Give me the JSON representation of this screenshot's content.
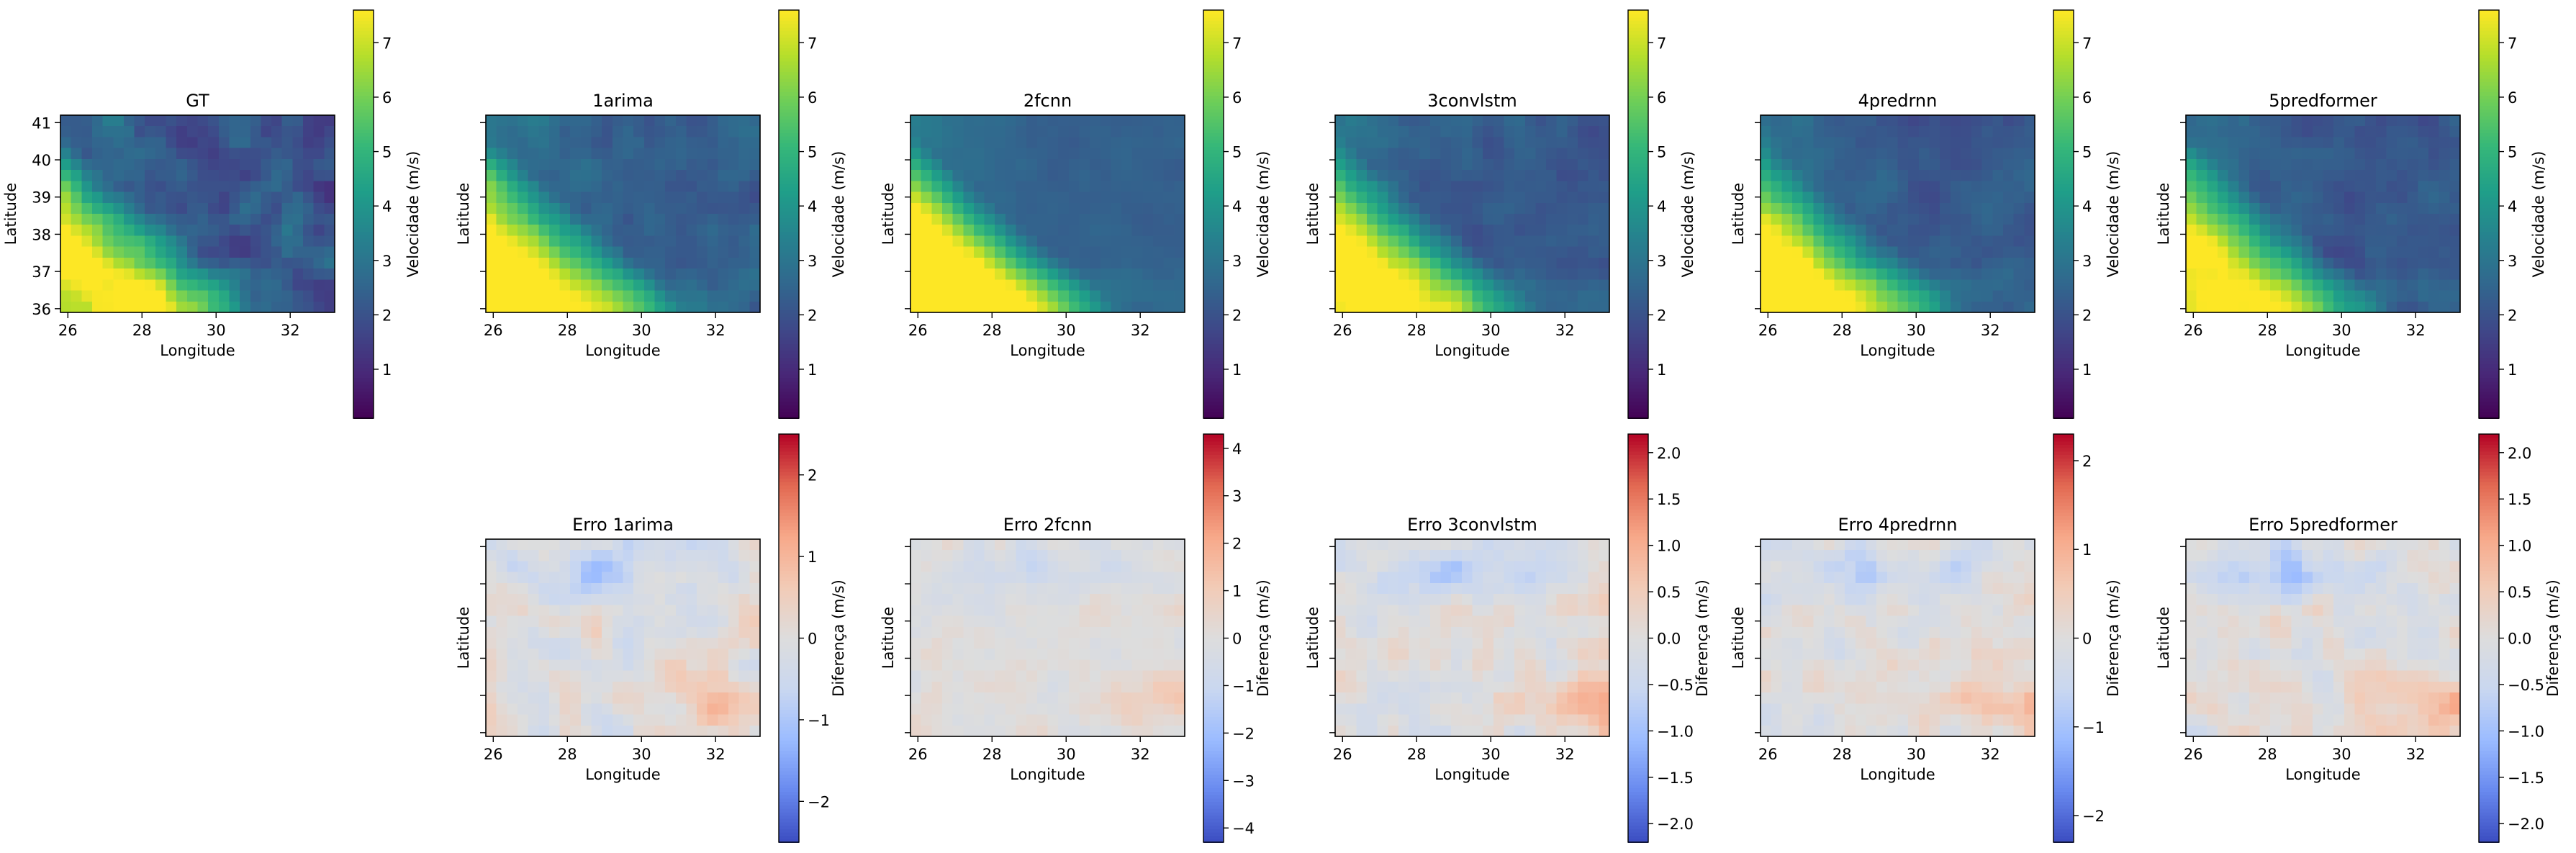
{
  "figure": {
    "xlabel": "Longitude",
    "ylabel": "Latitude",
    "velocity_colorbar_label": "Velocidade (m/s)",
    "error_colorbar_label": "Diferença (m/s)",
    "velocity_colormap": "viridis",
    "error_colormap": "coolwarm",
    "colors": {
      "viridis": [
        "#440154",
        "#482878",
        "#3e4989",
        "#31688e",
        "#26828e",
        "#1f9e89",
        "#35b779",
        "#6ece58",
        "#b5de2b",
        "#fde725"
      ],
      "coolwarm": [
        "#3b4cc0",
        "#6788ee",
        "#9abbff",
        "#c9d7f0",
        "#dddddd",
        "#f2cbb7",
        "#f7a889",
        "#e26952",
        "#b40426"
      ]
    }
  },
  "chart_data": [
    {
      "type": "heatmap",
      "title": "GT",
      "row": 0,
      "col": 0,
      "colormap": "viridis",
      "xlim": [
        25.8,
        33.2
      ],
      "ylim": [
        35.9,
        41.2
      ],
      "xticks": [
        26,
        28,
        30,
        32
      ],
      "yticks": [
        36,
        37,
        38,
        39,
        40,
        41
      ],
      "show_ytick_labels": true,
      "value_range": [
        0.1,
        7.6
      ],
      "colorbar_ticks": [
        1,
        2,
        3,
        4,
        5,
        6,
        7
      ],
      "colorbar_tick_labels": [
        "1",
        "2",
        "3",
        "4",
        "5",
        "6",
        "7"
      ],
      "colorbar_label": "Velocidade (m/s)",
      "field": {
        "scale": 1.0,
        "base": 0,
        "noise": 0.9,
        "seed": 11
      }
    },
    {
      "type": "heatmap",
      "title": "1arima",
      "row": 0,
      "col": 1,
      "colormap": "viridis",
      "xlim": [
        25.8,
        33.2
      ],
      "ylim": [
        35.9,
        41.2
      ],
      "xticks": [
        26,
        28,
        30,
        32
      ],
      "yticks": [
        36,
        37,
        38,
        39,
        40,
        41
      ],
      "show_ytick_labels": false,
      "value_range": [
        0.1,
        7.6
      ],
      "colorbar_ticks": [
        1,
        2,
        3,
        4,
        5,
        6,
        7
      ],
      "colorbar_tick_labels": [
        "1",
        "2",
        "3",
        "4",
        "5",
        "6",
        "7"
      ],
      "colorbar_label": "Velocidade (m/s)",
      "field": {
        "scale": 1.0,
        "base": 0.3,
        "noise": 0.5,
        "seed": 23
      }
    },
    {
      "type": "heatmap",
      "title": "2fcnn",
      "row": 0,
      "col": 2,
      "colormap": "viridis",
      "xlim": [
        25.8,
        33.2
      ],
      "ylim": [
        35.9,
        41.2
      ],
      "xticks": [
        26,
        28,
        30,
        32
      ],
      "yticks": [
        36,
        37,
        38,
        39,
        40,
        41
      ],
      "show_ytick_labels": false,
      "value_range": [
        0.1,
        7.6
      ],
      "colorbar_ticks": [
        1,
        2,
        3,
        4,
        5,
        6,
        7
      ],
      "colorbar_tick_labels": [
        "1",
        "2",
        "3",
        "4",
        "5",
        "6",
        "7"
      ],
      "colorbar_label": "Velocidade (m/s)",
      "field": {
        "scale": 1.2,
        "base": 0.3,
        "noise": 0.2,
        "seed": 37
      }
    },
    {
      "type": "heatmap",
      "title": "3convlstm",
      "row": 0,
      "col": 3,
      "colormap": "viridis",
      "xlim": [
        25.8,
        33.2
      ],
      "ylim": [
        35.9,
        41.2
      ],
      "xticks": [
        26,
        28,
        30,
        32
      ],
      "yticks": [
        36,
        37,
        38,
        39,
        40,
        41
      ],
      "show_ytick_labels": false,
      "value_range": [
        0.1,
        7.6
      ],
      "colorbar_ticks": [
        1,
        2,
        3,
        4,
        5,
        6,
        7
      ],
      "colorbar_tick_labels": [
        "1",
        "2",
        "3",
        "4",
        "5",
        "6",
        "7"
      ],
      "colorbar_label": "Velocidade (m/s)",
      "field": {
        "scale": 1.0,
        "base": 0.1,
        "noise": 0.45,
        "seed": 41
      }
    },
    {
      "type": "heatmap",
      "title": "4predrnn",
      "row": 0,
      "col": 4,
      "colormap": "viridis",
      "xlim": [
        25.8,
        33.2
      ],
      "ylim": [
        35.9,
        41.2
      ],
      "xticks": [
        26,
        28,
        30,
        32
      ],
      "yticks": [
        36,
        37,
        38,
        39,
        40,
        41
      ],
      "show_ytick_labels": false,
      "value_range": [
        0.1,
        7.6
      ],
      "colorbar_ticks": [
        1,
        2,
        3,
        4,
        5,
        6,
        7
      ],
      "colorbar_tick_labels": [
        "1",
        "2",
        "3",
        "4",
        "5",
        "6",
        "7"
      ],
      "colorbar_label": "Velocidade (m/s)",
      "field": {
        "scale": 1.0,
        "base": 0.1,
        "noise": 0.45,
        "seed": 53
      }
    },
    {
      "type": "heatmap",
      "title": "5predformer",
      "row": 0,
      "col": 5,
      "colormap": "viridis",
      "xlim": [
        25.8,
        33.2
      ],
      "ylim": [
        35.9,
        41.2
      ],
      "xticks": [
        26,
        28,
        30,
        32
      ],
      "yticks": [
        36,
        37,
        38,
        39,
        40,
        41
      ],
      "show_ytick_labels": false,
      "value_range": [
        0.1,
        7.6
      ],
      "colorbar_ticks": [
        1,
        2,
        3,
        4,
        5,
        6,
        7
      ],
      "colorbar_tick_labels": [
        "1",
        "2",
        "3",
        "4",
        "5",
        "6",
        "7"
      ],
      "colorbar_label": "Velocidade (m/s)",
      "field": {
        "scale": 0.95,
        "base": 0.1,
        "noise": 0.45,
        "seed": 67
      }
    },
    {
      "type": "heatmap",
      "title": "Erro 1arima",
      "row": 1,
      "col": 1,
      "colormap": "coolwarm",
      "xlim": [
        25.8,
        33.2
      ],
      "ylim": [
        35.9,
        41.2
      ],
      "xticks": [
        26,
        28,
        30,
        32
      ],
      "yticks": [
        36,
        37,
        38,
        39,
        40,
        41
      ],
      "show_ytick_labels": false,
      "value_range": [
        -2.5,
        2.5
      ],
      "colorbar_ticks": [
        -2,
        -1,
        0,
        1,
        2
      ],
      "colorbar_tick_labels": [
        "−2",
        "−1",
        "0",
        "1",
        "2"
      ],
      "colorbar_label": "Diferença (m/s)",
      "field": {
        "kind": "error",
        "amp": 1.1,
        "seed": 101
      }
    },
    {
      "type": "heatmap",
      "title": "Erro 2fcnn",
      "row": 1,
      "col": 2,
      "colormap": "coolwarm",
      "xlim": [
        25.8,
        33.2
      ],
      "ylim": [
        35.9,
        41.2
      ],
      "xticks": [
        26,
        28,
        30,
        32
      ],
      "yticks": [
        36,
        37,
        38,
        39,
        40,
        41
      ],
      "show_ytick_labels": false,
      "value_range": [
        -4.3,
        4.3
      ],
      "colorbar_ticks": [
        -4,
        -3,
        -2,
        -1,
        0,
        1,
        2,
        3,
        4
      ],
      "colorbar_tick_labels": [
        "−4",
        "−3",
        "−2",
        "−1",
        "0",
        "1",
        "2",
        "3",
        "4"
      ],
      "colorbar_label": "Diferença (m/s)",
      "field": {
        "kind": "error",
        "amp": 1.1,
        "seed": 113
      }
    },
    {
      "type": "heatmap",
      "title": "Erro 3convlstm",
      "row": 1,
      "col": 3,
      "colormap": "coolwarm",
      "xlim": [
        25.8,
        33.2
      ],
      "ylim": [
        35.9,
        41.2
      ],
      "xticks": [
        26,
        28,
        30,
        32
      ],
      "yticks": [
        36,
        37,
        38,
        39,
        40,
        41
      ],
      "show_ytick_labels": false,
      "value_range": [
        -2.2,
        2.2
      ],
      "colorbar_ticks": [
        -2.0,
        -1.5,
        -1.0,
        -0.5,
        0.0,
        0.5,
        1.0,
        1.5,
        2.0
      ],
      "colorbar_tick_labels": [
        "−2.0",
        "−1.5",
        "−1.0",
        "−0.5",
        "0.0",
        "0.5",
        "1.0",
        "1.5",
        "2.0"
      ],
      "colorbar_label": "Diferença (m/s)",
      "field": {
        "kind": "error",
        "amp": 0.9,
        "seed": 127
      }
    },
    {
      "type": "heatmap",
      "title": "Erro 4predrnn",
      "row": 1,
      "col": 4,
      "colormap": "coolwarm",
      "xlim": [
        25.8,
        33.2
      ],
      "ylim": [
        35.9,
        41.2
      ],
      "xticks": [
        26,
        28,
        30,
        32
      ],
      "yticks": [
        36,
        37,
        38,
        39,
        40,
        41
      ],
      "show_ytick_labels": false,
      "value_range": [
        -2.3,
        2.3
      ],
      "colorbar_ticks": [
        -2,
        -1,
        0,
        1,
        2
      ],
      "colorbar_tick_labels": [
        "−2",
        "−1",
        "0",
        "1",
        "2"
      ],
      "colorbar_label": "Diferença (m/s)",
      "field": {
        "kind": "error",
        "amp": 0.9,
        "seed": 131
      }
    },
    {
      "type": "heatmap",
      "title": "Erro 5predformer",
      "row": 1,
      "col": 5,
      "colormap": "coolwarm",
      "xlim": [
        25.8,
        33.2
      ],
      "ylim": [
        35.9,
        41.2
      ],
      "xticks": [
        26,
        28,
        30,
        32
      ],
      "yticks": [
        36,
        37,
        38,
        39,
        40,
        41
      ],
      "show_ytick_labels": false,
      "value_range": [
        -2.2,
        2.2
      ],
      "colorbar_ticks": [
        -2.0,
        -1.5,
        -1.0,
        -0.5,
        0.0,
        0.5,
        1.0,
        1.5,
        2.0
      ],
      "colorbar_tick_labels": [
        "−2.0",
        "−1.5",
        "−1.0",
        "−0.5",
        "0.0",
        "0.5",
        "1.0",
        "1.5",
        "2.0"
      ],
      "colorbar_label": "Diferença (m/s)",
      "field": {
        "kind": "error",
        "amp": 0.9,
        "seed": 149
      }
    }
  ]
}
